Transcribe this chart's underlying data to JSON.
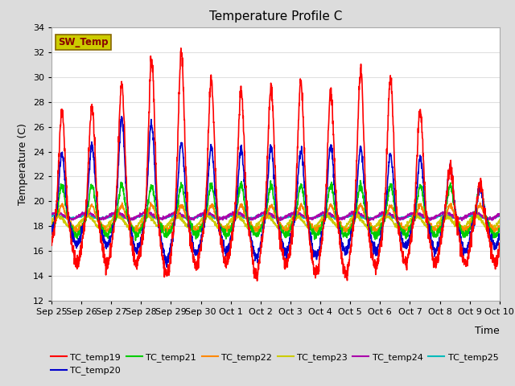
{
  "title": "Temperature Profile C",
  "xlabel": "Time",
  "ylabel": "Temperature (C)",
  "ylim": [
    12,
    34
  ],
  "yticks": [
    12,
    14,
    16,
    18,
    20,
    22,
    24,
    26,
    28,
    30,
    32,
    34
  ],
  "figure_bg": "#dcdcdc",
  "plot_bg": "#ffffff",
  "grid_color": "#e0e0e0",
  "series_colors": {
    "TC_temp19": "#ff0000",
    "TC_temp20": "#0000cc",
    "TC_temp21": "#00cc00",
    "TC_temp22": "#ff8800",
    "TC_temp23": "#cccc00",
    "TC_temp24": "#aa00aa",
    "TC_temp25": "#00bbbb"
  },
  "sw_temp_box_facecolor": "#cccc00",
  "sw_temp_box_edgecolor": "#886600",
  "sw_temp_text_color": "#880000",
  "x_tick_labels": [
    "Sep 25",
    "Sep 26",
    "Sep 27",
    "Sep 28",
    "Sep 29",
    "Sep 30",
    "Oct 1",
    "Oct 2",
    "Oct 3",
    "Oct 4",
    "Oct 5",
    "Oct 6",
    "Oct 7",
    "Oct 8",
    "Oct 9",
    "Oct 10"
  ],
  "legend_entries": [
    "TC_temp19",
    "TC_temp20",
    "TC_temp21",
    "TC_temp22",
    "TC_temp23",
    "TC_temp24",
    "TC_temp25"
  ],
  "n_days": 15,
  "pts_per_day": 144,
  "base_temp": 18.5,
  "seed": 42
}
